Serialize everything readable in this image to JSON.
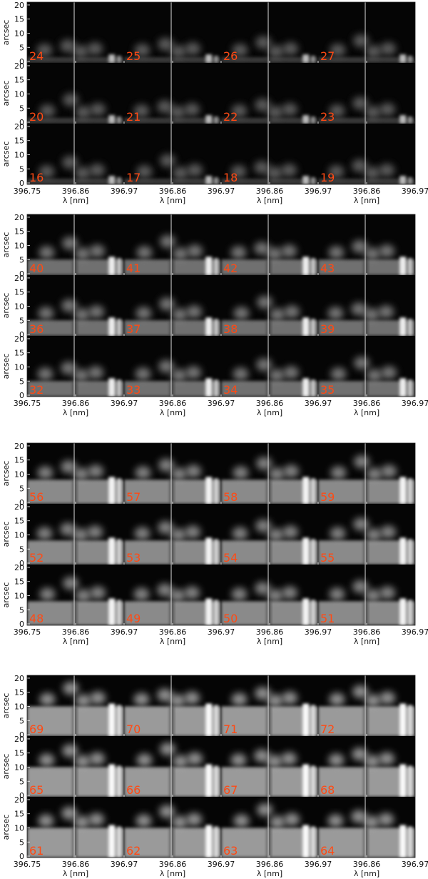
{
  "groups": [
    {
      "panels": [
        [
          24,
          25,
          26,
          27
        ],
        [
          20,
          21,
          22,
          23
        ],
        [
          16,
          17,
          18,
          19
        ]
      ]
    },
    {
      "panels": [
        [
          40,
          41,
          42,
          43
        ],
        [
          36,
          37,
          38,
          39
        ],
        [
          32,
          33,
          34,
          35
        ]
      ]
    },
    {
      "panels": [
        [
          56,
          57,
          58,
          59
        ],
        [
          52,
          53,
          54,
          55
        ],
        [
          48,
          49,
          50,
          51
        ]
      ]
    },
    {
      "panels": [
        [
          69,
          70,
          71,
          72
        ],
        [
          65,
          66,
          67,
          68
        ],
        [
          61,
          62,
          63,
          64
        ]
      ]
    }
  ],
  "y_label": "arcsec",
  "x_label": "λ [nm]",
  "ylim": [
    -0.5,
    21
  ],
  "yticks": [
    0,
    5,
    10,
    15,
    20
  ],
  "xlim": [
    396.75,
    396.97
  ],
  "xticks": [
    396.75,
    396.86,
    396.97
  ]
}
